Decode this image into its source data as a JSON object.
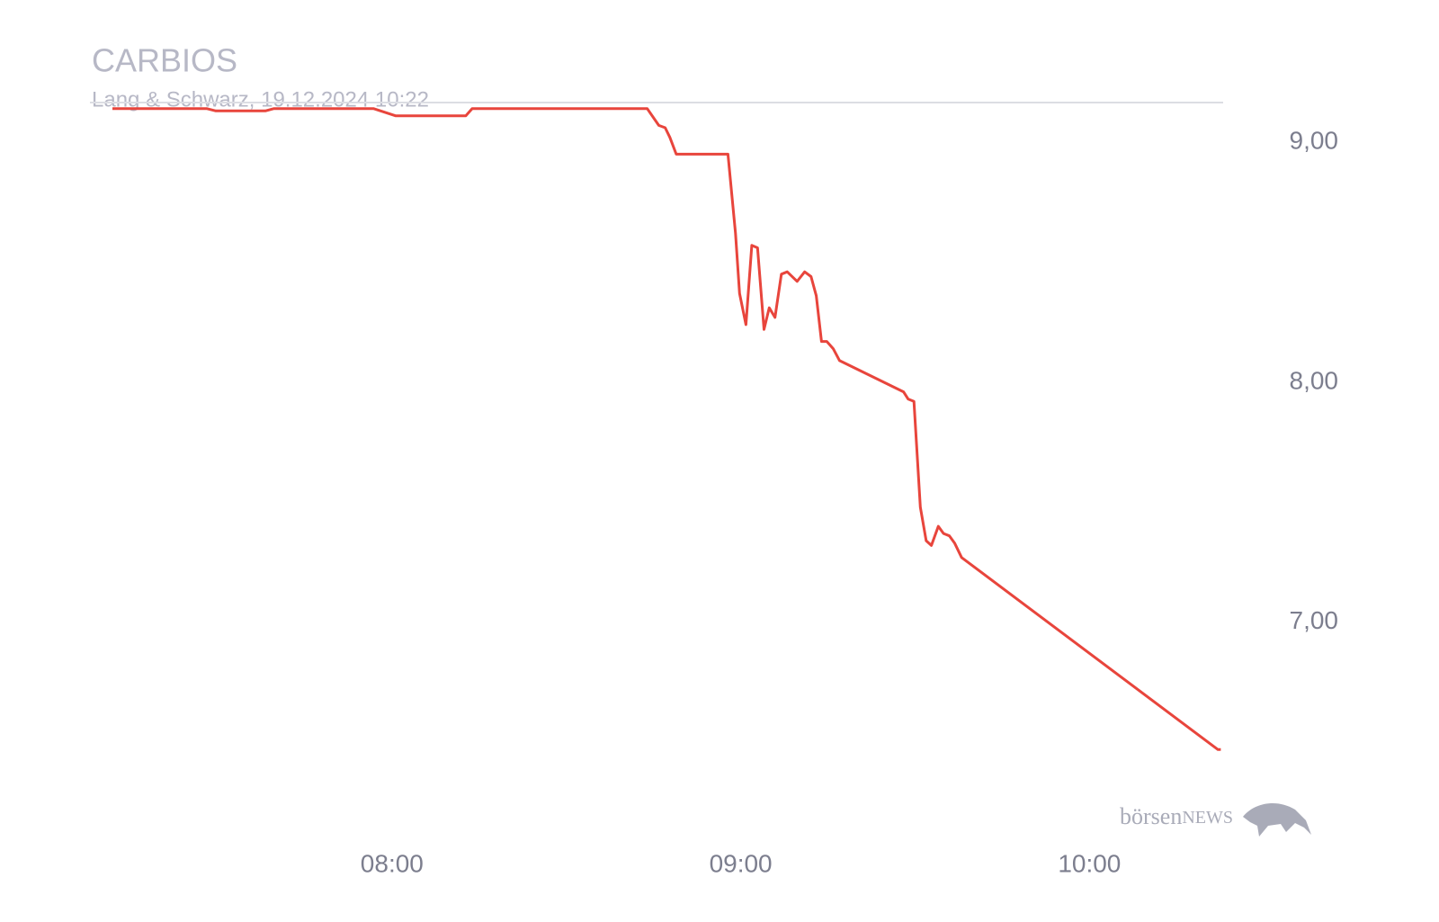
{
  "chart_data": {
    "type": "line",
    "title": "CARBIOS",
    "subtitle": "Lang & Schwarz, 19.12.2024 10:22",
    "x": [
      431.9,
      448.1,
      449.7,
      458.2,
      459.7,
      476.8,
      480.6,
      492.7,
      493.8,
      523.9,
      525.9,
      527.0,
      527.8,
      528.9,
      537.8,
      539.1,
      539.8,
      540.9,
      541.9,
      542.9,
      544.0,
      544.9,
      545.9,
      547.0,
      548.0,
      549.7,
      551.0,
      552.1,
      553.0,
      553.9,
      554.8,
      555.9,
      557.0,
      568.0,
      568.8,
      569.8,
      570.9,
      571.9,
      572.8,
      574.0,
      574.9,
      575.9,
      576.8,
      578.0,
      622.1,
      622.6
    ],
    "values": [
      9.14,
      9.14,
      9.13,
      9.13,
      9.14,
      9.14,
      9.11,
      9.11,
      9.14,
      9.14,
      9.07,
      9.06,
      9.02,
      8.95,
      8.95,
      8.62,
      8.37,
      8.24,
      8.57,
      8.56,
      8.22,
      8.31,
      8.27,
      8.45,
      8.46,
      8.42,
      8.46,
      8.44,
      8.36,
      8.17,
      8.17,
      8.14,
      8.09,
      7.96,
      7.93,
      7.92,
      7.48,
      7.34,
      7.32,
      7.4,
      7.37,
      7.36,
      7.33,
      7.27,
      6.47,
      6.47
    ],
    "color": "#e8453c",
    "xlim": [
      431.9,
      623
    ],
    "xticks": [
      {
        "value": 480,
        "label": "08:00"
      },
      {
        "value": 540,
        "label": "09:00"
      },
      {
        "value": 600,
        "label": "10:00"
      }
    ],
    "ylim": [
      6.22,
      9.165
    ],
    "yticks": [
      {
        "value": 9,
        "label": "9,00"
      },
      {
        "value": 8,
        "label": "8,00"
      },
      {
        "value": 7,
        "label": "7,00"
      }
    ],
    "watermark": {
      "brand": "börsen",
      "suffix": "NEWS"
    }
  }
}
